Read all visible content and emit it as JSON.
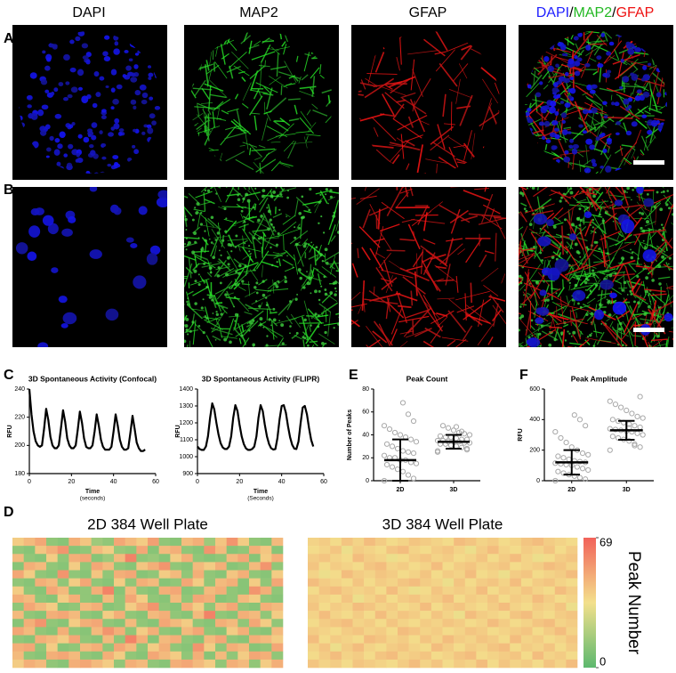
{
  "panel_labels": [
    "A",
    "B",
    "C",
    "D",
    "E",
    "F"
  ],
  "images": {
    "columns": [
      "DAPI",
      "MAP2",
      "GFAP"
    ],
    "merged_label": [
      {
        "text": "DAPI",
        "color": "#1f1fff"
      },
      {
        "text": "/",
        "color": "#000000"
      },
      {
        "text": "MAP2",
        "color": "#22b822"
      },
      {
        "text": "/",
        "color": "#000000"
      },
      {
        "text": "GFAP",
        "color": "#ee1111"
      }
    ]
  },
  "chart_data": [
    {
      "type": "line",
      "title": "3D Spontaneous Activity (Confocal)",
      "xlabel": "Time",
      "xlabel_sub": "(seconds)",
      "ylabel": "RFU",
      "xlim": [
        0,
        60
      ],
      "xticks": [
        0,
        20,
        40,
        60
      ],
      "ylim": [
        180,
        240
      ],
      "yticks": [
        180,
        200,
        220,
        240
      ],
      "color": "#000000",
      "x": [
        0,
        1,
        2,
        3,
        4,
        5,
        6,
        7,
        8,
        9,
        10,
        11,
        12,
        13,
        14,
        15,
        16,
        17,
        18,
        19,
        20,
        21,
        22,
        23,
        24,
        25,
        26,
        27,
        28,
        29,
        30,
        31,
        32,
        33,
        34,
        35,
        36,
        37,
        38,
        39,
        40,
        41,
        42,
        43,
        44,
        45,
        46,
        47,
        48,
        49,
        50,
        51,
        52,
        53,
        54,
        55
      ],
      "values": [
        240,
        222,
        210,
        203,
        200,
        199,
        200,
        212,
        226,
        218,
        206,
        200,
        198,
        198,
        200,
        212,
        225,
        217,
        205,
        200,
        198,
        198,
        200,
        211,
        224,
        216,
        205,
        199,
        198,
        198,
        200,
        210,
        222,
        214,
        204,
        199,
        197,
        197,
        197,
        199,
        210,
        222,
        214,
        204,
        199,
        197,
        197,
        198,
        209,
        221,
        212,
        202,
        198,
        196,
        196,
        197
      ]
    },
    {
      "type": "line",
      "title": "3D Spontaneous Activity (FLIPR)",
      "xlabel": "Time",
      "xlabel_sub": "(Seconds)",
      "ylabel": "RFU",
      "xlim": [
        0,
        60
      ],
      "xticks": [
        0,
        20,
        40,
        60
      ],
      "ylim": [
        900,
        1400
      ],
      "yticks": [
        900,
        1000,
        1100,
        1200,
        1300,
        1400
      ],
      "color": "#000000",
      "x": [
        0,
        1,
        2,
        3,
        4,
        5,
        6,
        7,
        8,
        9,
        10,
        11,
        12,
        13,
        14,
        15,
        16,
        17,
        18,
        19,
        20,
        21,
        22,
        23,
        24,
        25,
        26,
        27,
        28,
        29,
        30,
        31,
        32,
        33,
        34,
        35,
        36,
        37,
        38,
        39,
        40,
        41,
        42,
        43,
        44,
        45,
        46,
        47,
        48,
        49,
        50,
        51,
        52,
        53,
        54,
        55
      ],
      "values": [
        1060,
        1045,
        1040,
        1040,
        1060,
        1120,
        1230,
        1315,
        1280,
        1200,
        1130,
        1080,
        1055,
        1045,
        1045,
        1060,
        1120,
        1230,
        1305,
        1270,
        1190,
        1120,
        1075,
        1050,
        1040,
        1040,
        1045,
        1060,
        1120,
        1230,
        1305,
        1270,
        1190,
        1120,
        1075,
        1050,
        1042,
        1045,
        1110,
        1220,
        1300,
        1305,
        1260,
        1180,
        1115,
        1070,
        1048,
        1045,
        1090,
        1200,
        1290,
        1300,
        1250,
        1170,
        1100,
        1060
      ]
    },
    {
      "type": "dotplot",
      "title": "Peak Count",
      "ylabel": "Number of Peaks",
      "categories": [
        "2D",
        "3D"
      ],
      "ylim": [
        0,
        80
      ],
      "yticks": [
        0,
        20,
        40,
        60,
        80
      ],
      "color": "#a8a8a8",
      "points": [
        [
          0,
          2,
          5,
          8,
          10,
          12,
          14,
          15,
          16,
          18,
          18,
          20,
          20,
          22,
          24,
          25,
          26,
          28,
          30,
          32,
          34,
          36,
          38,
          40,
          42,
          45,
          48,
          52,
          58,
          68
        ],
        [
          26,
          28,
          29,
          30,
          31,
          32,
          32,
          33,
          33,
          34,
          34,
          34,
          35,
          35,
          36,
          36,
          37,
          38,
          38,
          39,
          40,
          41,
          42,
          44,
          46,
          48,
          25,
          27,
          43,
          47
        ]
      ],
      "mean": [
        18,
        34
      ],
      "sd": [
        18,
        6
      ]
    },
    {
      "type": "dotplot",
      "title": "Peak Amplitude",
      "ylabel": "RFU",
      "categories": [
        "2D",
        "3D"
      ],
      "ylim": [
        0,
        600
      ],
      "yticks": [
        0,
        200,
        400,
        600
      ],
      "color": "#a8a8a8",
      "points": [
        [
          0,
          10,
          20,
          30,
          40,
          50,
          60,
          70,
          80,
          90,
          100,
          105,
          110,
          115,
          120,
          125,
          130,
          140,
          150,
          160,
          170,
          180,
          200,
          220,
          250,
          280,
          320,
          360,
          400,
          430
        ],
        [
          200,
          220,
          240,
          260,
          270,
          280,
          290,
          300,
          310,
          320,
          325,
          330,
          335,
          340,
          350,
          360,
          370,
          380,
          390,
          400,
          410,
          420,
          440,
          460,
          480,
          500,
          520,
          550,
          230,
          345
        ]
      ],
      "mean": [
        120,
        330
      ],
      "sd": [
        80,
        62
      ]
    },
    {
      "type": "heatmap",
      "title": "2D 384 Well Plate",
      "zlim": [
        0,
        69
      ],
      "values": [
        [
          40,
          45,
          50,
          12,
          10,
          48,
          42,
          15,
          12,
          50,
          45,
          40,
          52,
          12,
          10,
          44,
          48,
          15,
          42,
          55,
          40,
          12,
          10,
          45
        ],
        [
          12,
          10,
          42,
          48,
          55,
          10,
          12,
          45,
          40,
          14,
          12,
          50,
          10,
          45,
          48,
          12,
          10,
          55,
          45,
          10,
          12,
          48,
          42,
          10
        ],
        [
          45,
          12,
          10,
          40,
          12,
          48,
          50,
          10,
          15,
          45,
          60,
          12,
          14,
          10,
          40,
          48,
          12,
          10,
          12,
          45,
          50,
          10,
          40,
          48
        ],
        [
          10,
          48,
          45,
          12,
          10,
          40,
          12,
          50,
          45,
          12,
          10,
          42,
          48,
          55,
          12,
          10,
          45,
          40,
          48,
          10,
          12,
          45,
          55,
          12
        ],
        [
          50,
          40,
          12,
          10,
          55,
          12,
          10,
          42,
          12,
          48,
          50,
          10,
          12,
          40,
          45,
          12,
          48,
          12,
          10,
          42,
          48,
          12,
          10,
          40
        ],
        [
          12,
          10,
          48,
          45,
          12,
          40,
          50,
          12,
          10,
          40,
          12,
          48,
          45,
          10,
          12,
          50,
          40,
          12,
          45,
          48,
          10,
          40,
          12,
          50
        ],
        [
          40,
          12,
          10,
          50,
          45,
          10,
          12,
          48,
          60,
          10,
          45,
          12,
          10,
          48,
          50,
          10,
          12,
          45,
          48,
          12,
          10,
          55,
          48,
          12
        ],
        [
          48,
          45,
          12,
          10,
          40,
          48,
          12,
          10,
          45,
          12,
          50,
          40,
          12,
          10,
          45,
          12,
          50,
          48,
          10,
          12,
          45,
          40,
          12,
          10
        ],
        [
          12,
          50,
          45,
          40,
          10,
          12,
          45,
          48,
          10,
          12,
          40,
          48,
          55,
          12,
          10,
          48,
          40,
          12,
          45,
          50,
          12,
          10,
          48,
          45
        ],
        [
          45,
          12,
          10,
          48,
          50,
          45,
          12,
          10,
          40,
          48,
          12,
          10,
          45,
          48,
          12,
          10,
          45,
          60,
          12,
          10,
          48,
          45,
          12,
          40
        ],
        [
          10,
          48,
          55,
          12,
          10,
          40,
          48,
          50,
          12,
          10,
          45,
          12,
          10,
          50,
          45,
          40,
          12,
          10,
          48,
          45,
          12,
          50,
          40,
          12
        ],
        [
          50,
          45,
          12,
          10,
          48,
          12,
          10,
          45,
          55,
          48,
          12,
          40,
          48,
          12,
          10,
          45,
          50,
          12,
          10,
          40,
          48,
          12,
          10,
          45
        ],
        [
          12,
          10,
          48,
          45,
          40,
          50,
          12,
          10,
          45,
          12,
          60,
          48,
          10,
          45,
          48,
          12,
          10,
          45,
          50,
          12,
          10,
          48,
          45,
          40
        ],
        [
          48,
          50,
          12,
          40,
          10,
          12,
          45,
          48,
          12,
          50,
          45,
          12,
          40,
          48,
          12,
          10,
          55,
          40,
          12,
          48,
          45,
          10,
          12,
          50
        ],
        [
          45,
          12,
          10,
          48,
          50,
          45,
          12,
          10,
          48,
          40,
          12,
          10,
          50,
          45,
          40,
          12,
          48,
          10,
          45,
          12,
          40,
          50,
          48,
          12
        ],
        [
          40,
          48,
          45,
          12,
          10,
          48,
          50,
          45,
          40,
          12,
          48,
          45,
          12,
          10,
          48,
          50,
          45,
          40,
          12,
          48,
          45,
          12,
          40,
          48
        ]
      ]
    },
    {
      "type": "heatmap",
      "title": "3D 384 Well Plate",
      "zlim": [
        0,
        69
      ],
      "colorbar": {
        "label": "Peak Number",
        "ticks": [
          0,
          69
        ]
      },
      "values": [
        [
          38,
          40,
          36,
          42,
          38,
          44,
          40,
          36,
          38,
          42,
          40,
          38,
          36,
          44,
          42,
          38,
          40,
          36,
          38,
          42,
          44,
          40,
          38,
          36
        ],
        [
          36,
          38,
          42,
          33,
          40,
          38,
          36,
          42,
          44,
          38,
          36,
          40,
          42,
          38,
          33,
          40,
          44,
          38,
          36,
          40,
          38,
          42,
          36,
          40
        ],
        [
          40,
          42,
          38,
          36,
          44,
          40,
          38,
          33,
          36,
          40,
          42,
          38,
          40,
          36,
          38,
          42,
          36,
          40,
          44,
          38,
          33,
          36,
          40,
          42
        ],
        [
          42,
          36,
          40,
          38,
          36,
          42,
          44,
          38,
          40,
          36,
          38,
          44,
          36,
          40,
          42,
          38,
          40,
          42,
          36,
          38,
          40,
          44,
          42,
          38
        ],
        [
          38,
          33,
          36,
          44,
          40,
          38,
          42,
          40,
          36,
          38,
          42,
          36,
          40,
          38,
          44,
          36,
          38,
          33,
          40,
          42,
          36,
          38,
          40,
          44
        ],
        [
          44,
          40,
          38,
          36,
          42,
          36,
          40,
          38,
          42,
          44,
          40,
          38,
          33,
          42,
          36,
          40,
          42,
          38,
          44,
          36,
          40,
          42,
          38,
          36
        ],
        [
          36,
          42,
          44,
          40,
          38,
          40,
          36,
          44,
          38,
          33,
          36,
          42,
          38,
          40,
          38,
          44,
          36,
          40,
          38,
          42,
          38,
          36,
          44,
          40
        ],
        [
          40,
          38,
          36,
          42,
          33,
          38,
          42,
          36,
          40,
          42,
          38,
          40,
          44,
          36,
          40,
          38,
          42,
          36,
          40,
          38,
          44,
          40,
          36,
          38
        ],
        [
          42,
          36,
          40,
          38,
          44,
          42,
          38,
          40,
          36,
          38,
          44,
          36,
          40,
          42,
          38,
          36,
          40,
          44,
          38,
          36,
          40,
          38,
          42,
          33
        ],
        [
          38,
          44,
          38,
          36,
          40,
          36,
          44,
          38,
          42,
          40,
          36,
          42,
          38,
          33,
          44,
          40,
          38,
          36,
          42,
          44,
          38,
          36,
          40,
          42
        ],
        [
          36,
          40,
          42,
          44,
          38,
          40,
          36,
          42,
          38,
          36,
          40,
          38,
          42,
          40,
          36,
          38,
          44,
          40,
          36,
          38,
          42,
          44,
          38,
          40
        ],
        [
          40,
          38,
          36,
          40,
          42,
          38,
          40,
          36,
          44,
          42,
          38,
          40,
          36,
          38,
          42,
          40,
          36,
          38,
          40,
          42,
          36,
          40,
          44,
          38
        ],
        [
          44,
          36,
          40,
          38,
          36,
          44,
          42,
          38,
          40,
          36,
          42,
          38,
          44,
          40,
          38,
          42,
          40,
          36,
          44,
          38,
          40,
          36,
          38,
          42
        ],
        [
          38,
          42,
          33,
          40,
          44,
          38,
          36,
          40,
          42,
          38,
          36,
          44,
          40,
          36,
          40,
          38,
          42,
          44,
          36,
          40,
          38,
          42,
          36,
          40
        ],
        [
          36,
          40,
          44,
          38,
          40,
          36,
          42,
          44,
          38,
          40,
          42,
          36,
          38,
          42,
          44,
          36,
          38,
          40,
          42,
          36,
          44,
          38,
          40,
          36
        ],
        [
          42,
          38,
          40,
          36,
          42,
          40,
          38,
          36,
          40,
          44,
          38,
          42,
          36,
          40,
          38,
          44,
          36,
          42,
          38,
          40,
          36,
          42,
          38,
          44
        ]
      ]
    }
  ]
}
